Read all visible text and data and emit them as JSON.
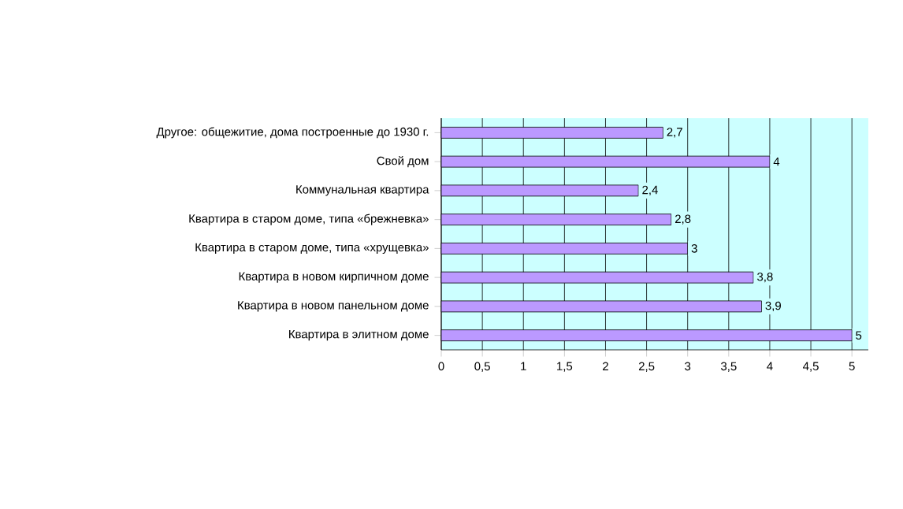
{
  "chart_data": {
    "type": "bar",
    "orientation": "horizontal",
    "categories": [
      "Другое: общежитие, дома построенные до 1930 г.",
      "Свой дом",
      "Коммунальная квартира",
      "Квартира в старом доме, типа «брежневка»",
      "Квартира в старом доме, типа «хрущевка»",
      "Квартира в новом кирпичном доме",
      "Квартира в новом панельном доме",
      "Квартира в элитном доме"
    ],
    "values": [
      2.7,
      4,
      2.4,
      2.8,
      3,
      3.8,
      3.9,
      5
    ],
    "value_labels": [
      "2,7",
      "4",
      "2,4",
      "2,8",
      "3",
      "3,8",
      "3,9",
      "5"
    ],
    "color": "#bb99ff",
    "xlim": [
      0,
      5.2
    ],
    "xticks": [
      0,
      {
        "value": 0.5,
        "label": "0,5"
      },
      1,
      {
        "value": 1.5,
        "label": "1,5"
      },
      2,
      {
        "value": 2.5,
        "label": "2,5"
      },
      3,
      {
        "value": 3.5,
        "label": "3,5"
      },
      4,
      {
        "value": 4.5,
        "label": "4,5"
      },
      5
    ],
    "grid": "x"
  }
}
